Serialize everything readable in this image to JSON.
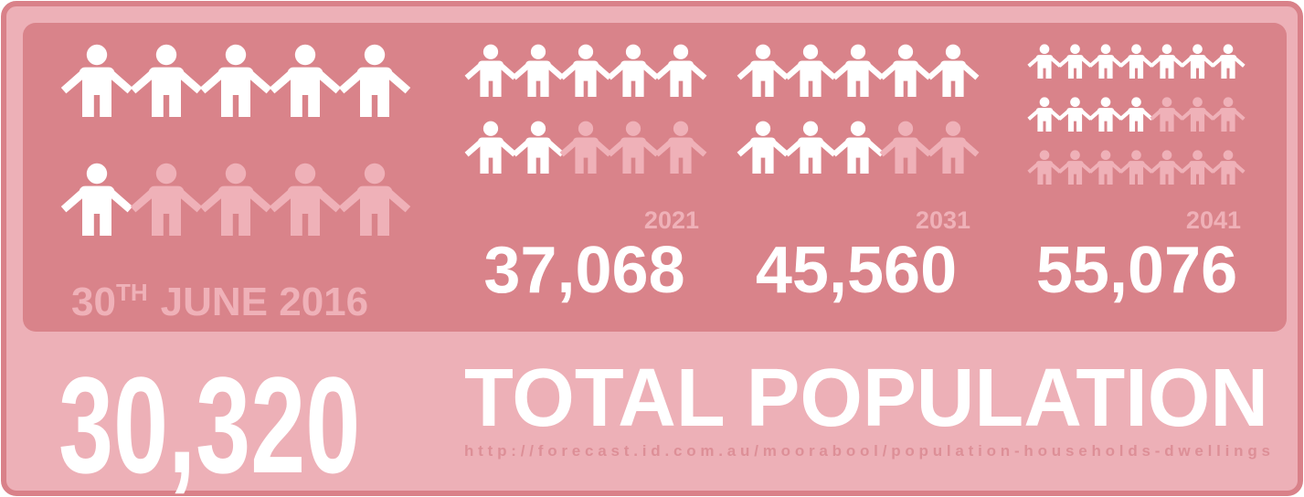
{
  "main": {
    "date": {
      "day": "30",
      "suffix": "TH",
      "rest": "JUNE 2016"
    },
    "icons": 10,
    "filled": 6
  },
  "forecasts": [
    {
      "year": "2021",
      "population": "37,068",
      "icons": 10,
      "filled": 7
    },
    {
      "year": "2031",
      "population": "45,560",
      "icons": 10,
      "filled": 8
    },
    {
      "year": "2041",
      "population": "55,076",
      "icons": 21,
      "filled": 11
    }
  ],
  "total": {
    "value": "30,320",
    "label": "TOTAL POPULATION",
    "source": "http://forecast.id.com.au/moorabool/population-households-dwellings"
  }
}
